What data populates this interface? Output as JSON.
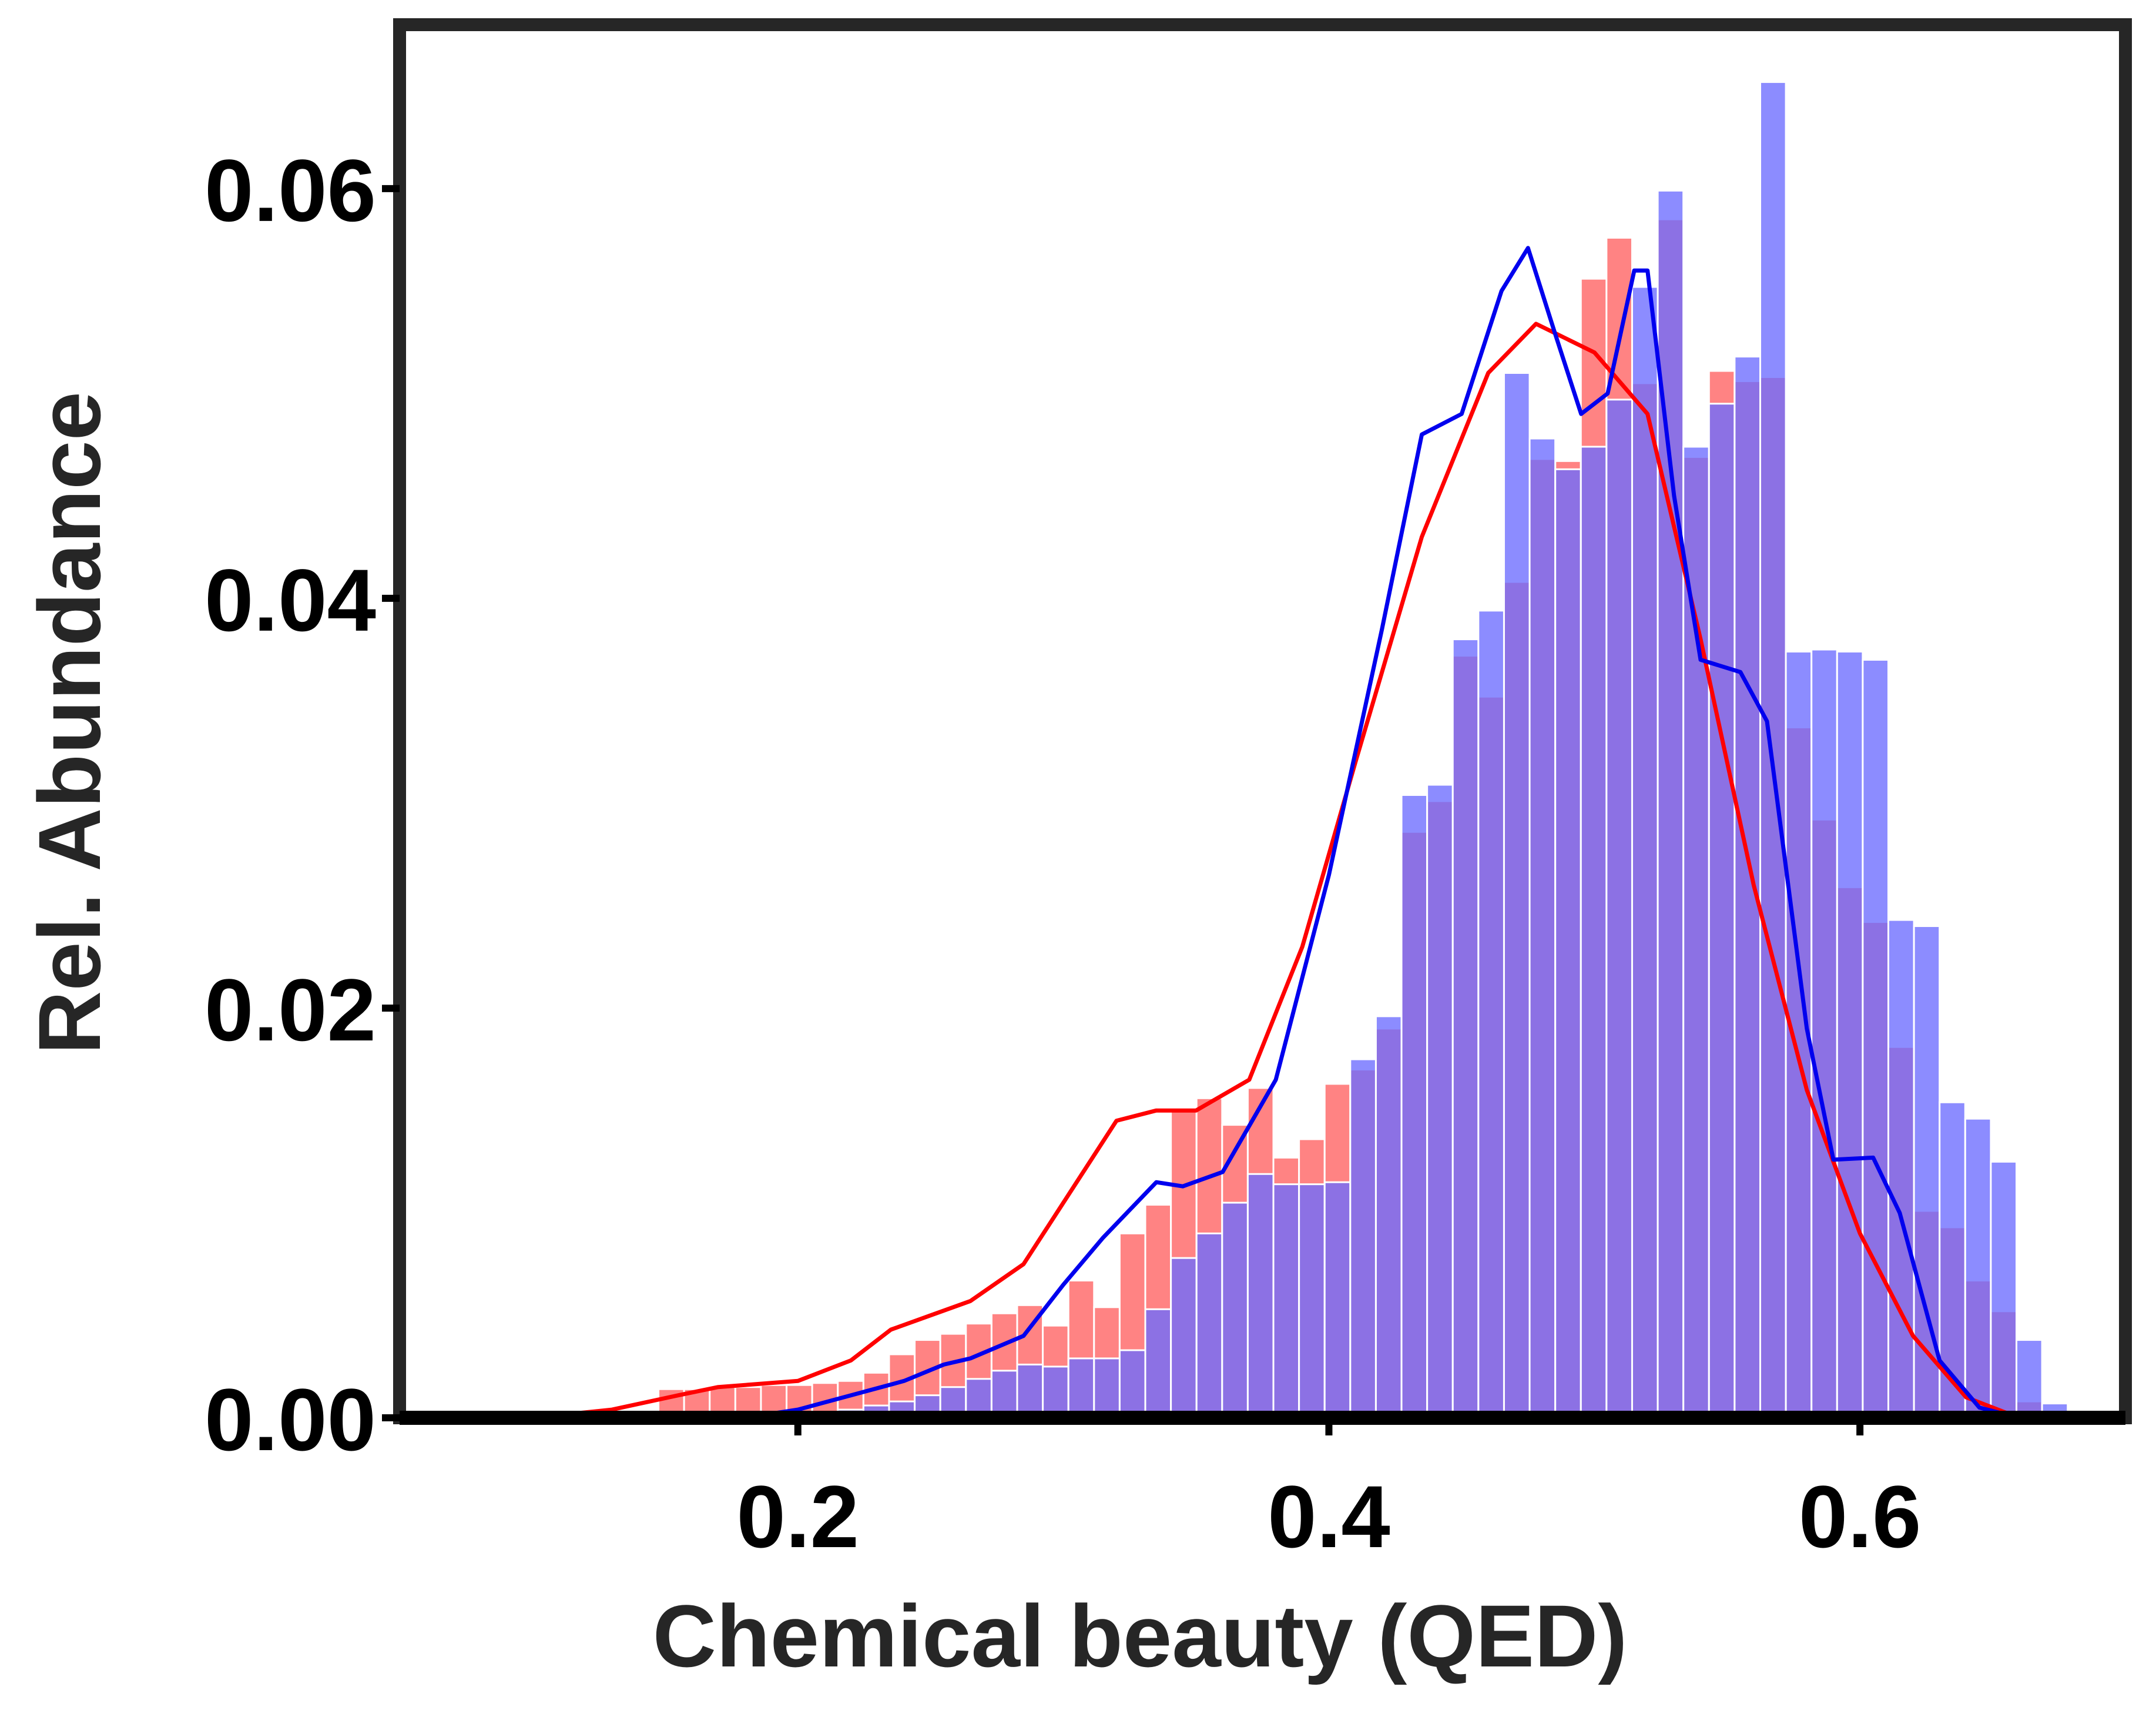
{
  "chart_data": {
    "type": "histogram",
    "xlabel": "Chemical beauty (QED)",
    "ylabel": "Rel. Abundance",
    "xlim": [
      0.05,
      0.7
    ],
    "ylim": [
      0,
      0.068
    ],
    "x_ticks": [
      "0.2",
      "0.4",
      "0.6"
    ],
    "y_ticks": [
      "0.00",
      "0.02",
      "0.04",
      "0.06"
    ],
    "grid": false,
    "legend": "none",
    "bin_start": 0.1475,
    "bin_width": 0.00965,
    "series": [
      {
        "color": "#ff0000",
        "bar_color": "#ff5959",
        "bar_alpha": 0.75,
        "values": [
          0.0014,
          0.0014,
          0.0015,
          0.0015,
          0.0016,
          0.0016,
          0.0017,
          0.0018,
          0.0022,
          0.0031,
          0.0038,
          0.0041,
          0.0046,
          0.0051,
          0.0055,
          0.0045,
          0.0067,
          0.0054,
          0.009,
          0.0104,
          0.0151,
          0.0156,
          0.0143,
          0.0161,
          0.0127,
          0.0136,
          0.0163,
          0.017,
          0.019,
          0.0286,
          0.0301,
          0.0372,
          0.0352,
          0.0408,
          0.0468,
          0.0467,
          0.0556,
          0.0576,
          0.0505,
          0.0585,
          0.0469,
          0.0511,
          0.0506,
          0.0508,
          0.0337,
          0.0292,
          0.0259,
          0.0242,
          0.0181,
          0.0101,
          0.0093,
          0.0067,
          0.0052,
          0.0008
        ],
        "kde": [
          [
            0.1,
            0.0
          ],
          [
            0.13,
            0.0004
          ],
          [
            0.155,
            0.0011
          ],
          [
            0.17,
            0.0015
          ],
          [
            0.2,
            0.0018
          ],
          [
            0.22,
            0.0028
          ],
          [
            0.235,
            0.0043
          ],
          [
            0.25,
            0.005
          ],
          [
            0.265,
            0.0057
          ],
          [
            0.285,
            0.0075
          ],
          [
            0.305,
            0.0115
          ],
          [
            0.32,
            0.0145
          ],
          [
            0.335,
            0.015
          ],
          [
            0.35,
            0.015
          ],
          [
            0.37,
            0.0165
          ],
          [
            0.39,
            0.023
          ],
          [
            0.41,
            0.032
          ],
          [
            0.435,
            0.043
          ],
          [
            0.46,
            0.051
          ],
          [
            0.478,
            0.0534
          ],
          [
            0.5,
            0.052
          ],
          [
            0.52,
            0.049
          ],
          [
            0.54,
            0.038
          ],
          [
            0.56,
            0.026
          ],
          [
            0.58,
            0.016
          ],
          [
            0.6,
            0.009
          ],
          [
            0.62,
            0.004
          ],
          [
            0.64,
            0.001
          ],
          [
            0.66,
            0.0
          ]
        ]
      },
      {
        "color": "#0000ee",
        "bar_color": "#6b6bff",
        "bar_alpha": 0.78,
        "values": [
          0.0,
          0.0,
          0.0,
          0.0,
          0.0,
          0.0001,
          0.0003,
          0.0004,
          0.0006,
          0.0008,
          0.0011,
          0.0015,
          0.0019,
          0.0023,
          0.0026,
          0.0025,
          0.0029,
          0.0029,
          0.0033,
          0.0053,
          0.0078,
          0.009,
          0.0105,
          0.0119,
          0.0114,
          0.0114,
          0.0115,
          0.0175,
          0.0196,
          0.0304,
          0.0309,
          0.038,
          0.0394,
          0.051,
          0.0478,
          0.0463,
          0.0474,
          0.0497,
          0.0552,
          0.0599,
          0.0474,
          0.0495,
          0.0518,
          0.0652,
          0.0374,
          0.0375,
          0.0374,
          0.037,
          0.0243,
          0.024,
          0.0154,
          0.0146,
          0.0125,
          0.0038,
          0.0007
        ],
        "kde": [
          [
            0.18,
            0.0
          ],
          [
            0.2,
            0.0004
          ],
          [
            0.22,
            0.0011
          ],
          [
            0.24,
            0.0018
          ],
          [
            0.255,
            0.0026
          ],
          [
            0.265,
            0.0029
          ],
          [
            0.285,
            0.004
          ],
          [
            0.3,
            0.0065
          ],
          [
            0.315,
            0.0088
          ],
          [
            0.335,
            0.0115
          ],
          [
            0.345,
            0.0113
          ],
          [
            0.36,
            0.012
          ],
          [
            0.38,
            0.0165
          ],
          [
            0.4,
            0.0265
          ],
          [
            0.42,
            0.0385
          ],
          [
            0.435,
            0.048
          ],
          [
            0.45,
            0.049
          ],
          [
            0.465,
            0.055
          ],
          [
            0.475,
            0.0571
          ],
          [
            0.485,
            0.053
          ],
          [
            0.495,
            0.049
          ],
          [
            0.505,
            0.05
          ],
          [
            0.515,
            0.056
          ],
          [
            0.52,
            0.056
          ],
          [
            0.53,
            0.045
          ],
          [
            0.54,
            0.037
          ],
          [
            0.555,
            0.0364
          ],
          [
            0.565,
            0.034
          ],
          [
            0.58,
            0.019
          ],
          [
            0.59,
            0.0126
          ],
          [
            0.605,
            0.0127
          ],
          [
            0.615,
            0.01
          ],
          [
            0.63,
            0.0028
          ],
          [
            0.645,
            0.0005
          ],
          [
            0.66,
            0.0
          ]
        ]
      }
    ]
  }
}
